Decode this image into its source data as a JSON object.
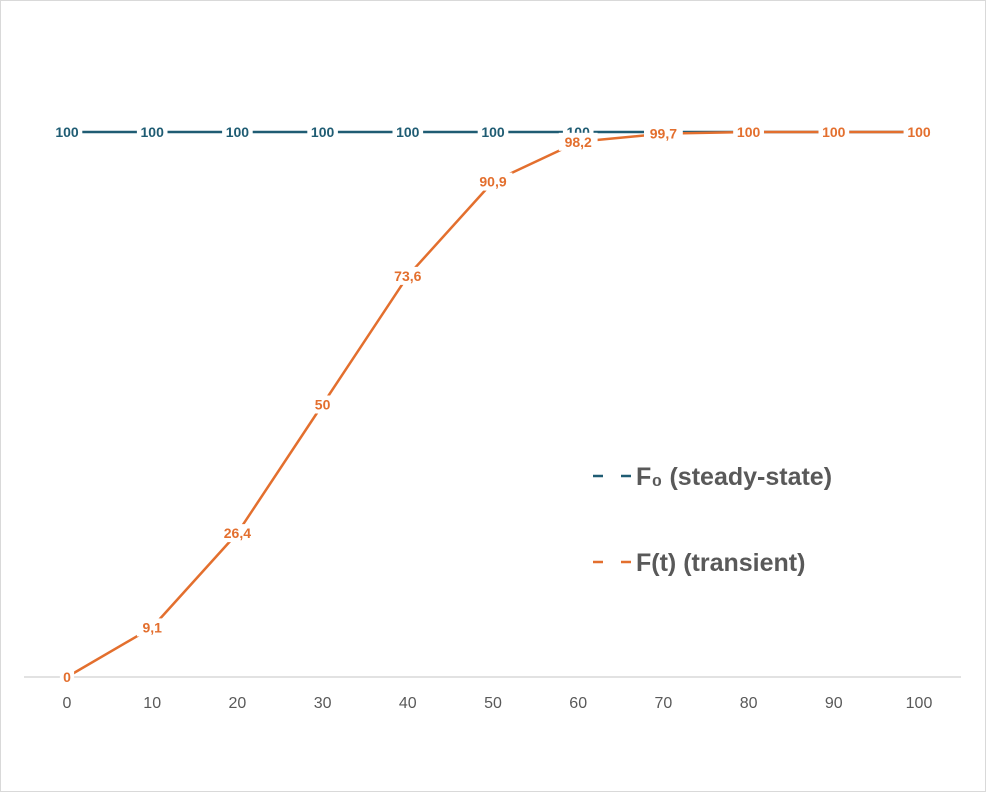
{
  "chart_data": {
    "type": "line",
    "x": [
      0,
      10,
      20,
      30,
      40,
      50,
      60,
      70,
      80,
      90,
      100
    ],
    "xlim": [
      0,
      100
    ],
    "ylim": [
      0,
      100
    ],
    "grid": false,
    "legend_position": "right",
    "series": [
      {
        "name": "F₀ (steady-state)",
        "color": "#1f5c73",
        "values": [
          100,
          100,
          100,
          100,
          100,
          100,
          100,
          100,
          100,
          100,
          100
        ],
        "labels": [
          "100",
          "100",
          "100",
          "100",
          "100",
          "100",
          "100",
          "100",
          "100",
          "100",
          "100"
        ]
      },
      {
        "name": "F(t) (transient)",
        "color": "#e36f2e",
        "values": [
          0,
          9.1,
          26.4,
          50,
          73.6,
          90.9,
          98.2,
          99.7,
          100,
          100,
          100
        ],
        "labels": [
          "0",
          "9,1",
          "26,4",
          "50",
          "73,6",
          "90,9",
          "98,2",
          "99,7",
          "100",
          "100",
          "100"
        ]
      }
    ]
  }
}
